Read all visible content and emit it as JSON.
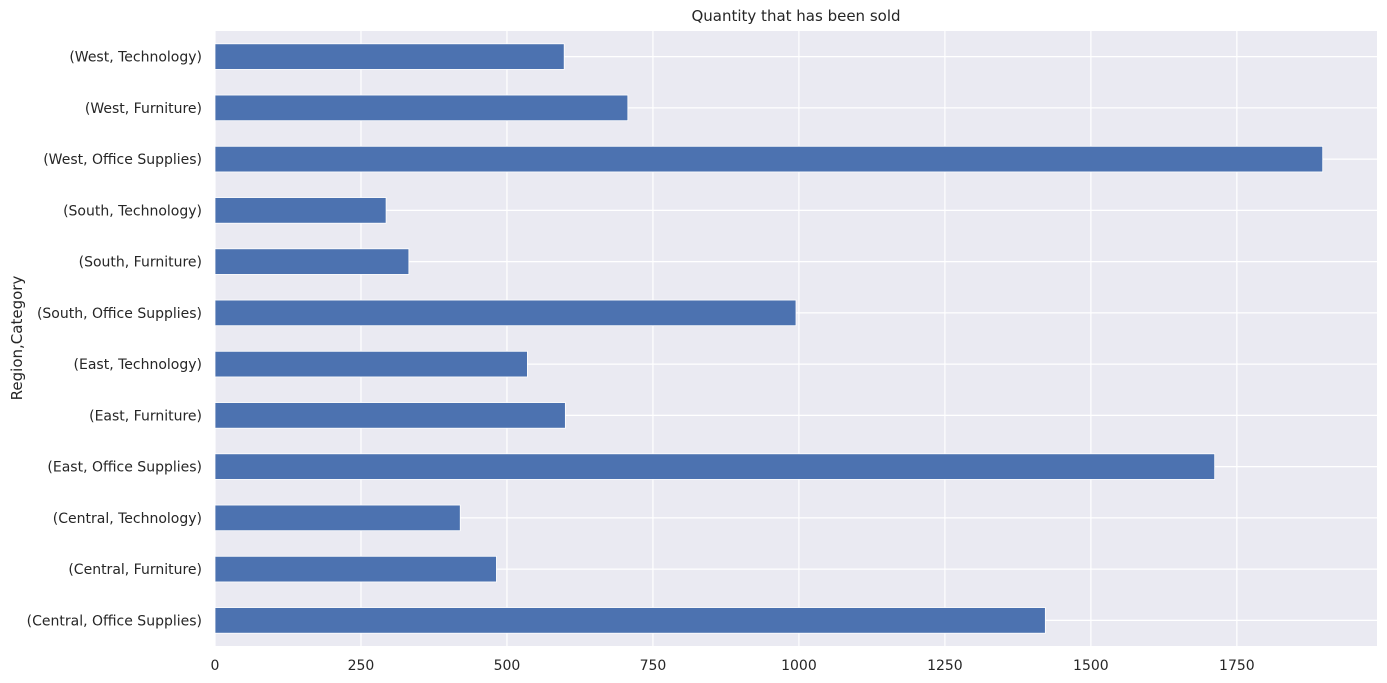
{
  "chart_data": {
    "type": "bar",
    "orientation": "horizontal",
    "title": "Quantity that has been sold",
    "xlabel": "",
    "ylabel": "Region,Category",
    "categories": [
      "(Central, Office Supplies)",
      "(Central, Furniture)",
      "(Central, Technology)",
      "(East, Office Supplies)",
      "(East, Furniture)",
      "(East, Technology)",
      "(South, Office Supplies)",
      "(South, Furniture)",
      "(South, Technology)",
      "(West, Office Supplies)",
      "(West, Furniture)",
      "(West, Technology)"
    ],
    "values": [
      1422,
      482,
      420,
      1712,
      600,
      535,
      995,
      332,
      293,
      1897,
      707,
      598
    ],
    "xlim": [
      0,
      1990
    ],
    "xticks": [
      0,
      250,
      500,
      750,
      1000,
      1250,
      1500,
      1750
    ],
    "grid": true,
    "colors": {
      "bar": "#4c72b0",
      "background": "#eaeaf2",
      "grid": "#ffffff"
    }
  }
}
